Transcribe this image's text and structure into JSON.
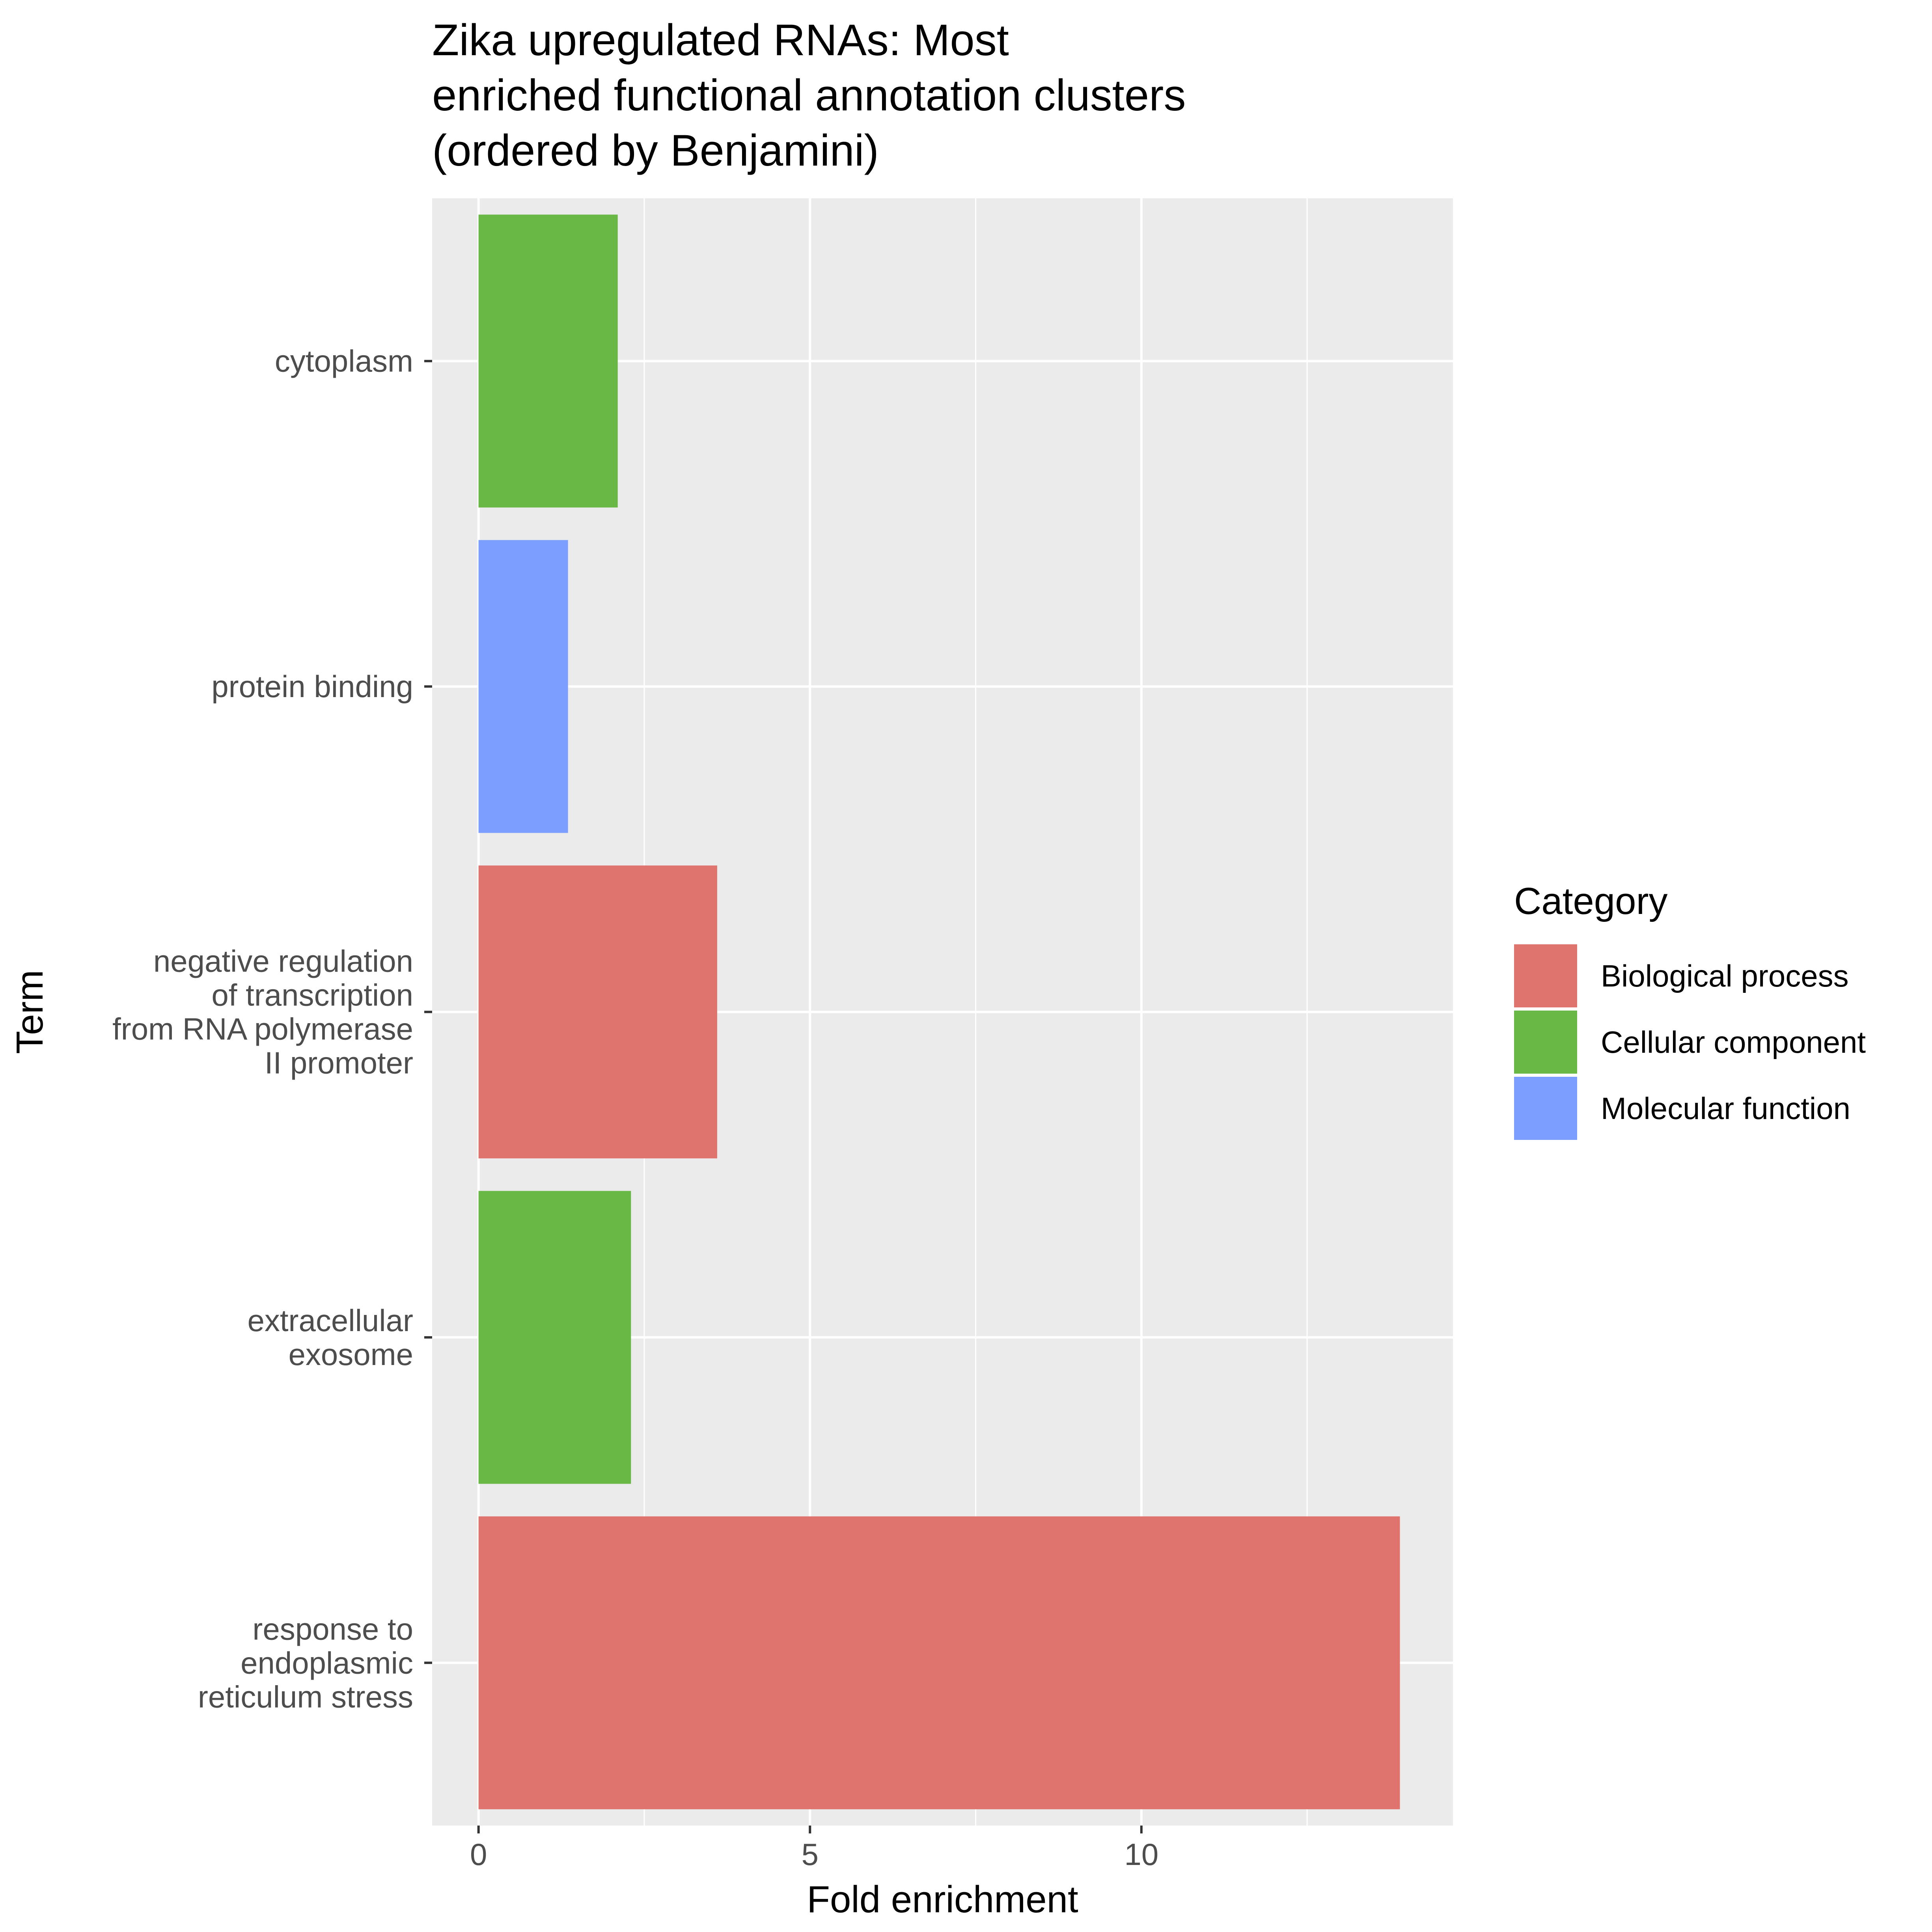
{
  "chart_data": {
    "type": "bar",
    "orientation": "horizontal",
    "title": [
      "Zika upregulated RNAs: Most",
      "enriched functional annotation clusters",
      "(ordered by Benjamini)"
    ],
    "xlabel": "Fold enrichment",
    "ylabel": "Term",
    "xlim": [
      -0.7,
      14.7
    ],
    "x_ticks": [
      0,
      5,
      10
    ],
    "x_minor_ticks": [
      2.5,
      7.5,
      12.5
    ],
    "grid": true,
    "legend_position": "right",
    "categories": [
      {
        "id": "cytoplasm",
        "label_lines": [
          "cytoplasm"
        ]
      },
      {
        "id": "protein-binding",
        "label_lines": [
          "protein binding"
        ]
      },
      {
        "id": "neg-reg-transcription",
        "label_lines": [
          "negative regulation",
          "of transcription",
          "from RNA polymerase",
          "II promoter"
        ]
      },
      {
        "id": "extracellular-exosome",
        "label_lines": [
          "extracellular",
          "exosome"
        ]
      },
      {
        "id": "er-stress",
        "label_lines": [
          "response to",
          "endoplasmic",
          "reticulum stress"
        ]
      }
    ],
    "values": [
      2.1,
      1.35,
      3.6,
      2.3,
      13.9
    ],
    "bar_category": [
      "Cellular component",
      "Molecular function",
      "Biological process",
      "Cellular component",
      "Biological process"
    ],
    "legend": {
      "title": "Category",
      "entries": [
        {
          "name": "Biological process",
          "color": "#df746f"
        },
        {
          "name": "Cellular component",
          "color": "#69b845"
        },
        {
          "name": "Molecular function",
          "color": "#7b9eff"
        }
      ]
    },
    "colors": {
      "panel_background": "#ebebeb",
      "grid_line": "#ffffff",
      "tick_color": "#333333"
    }
  }
}
